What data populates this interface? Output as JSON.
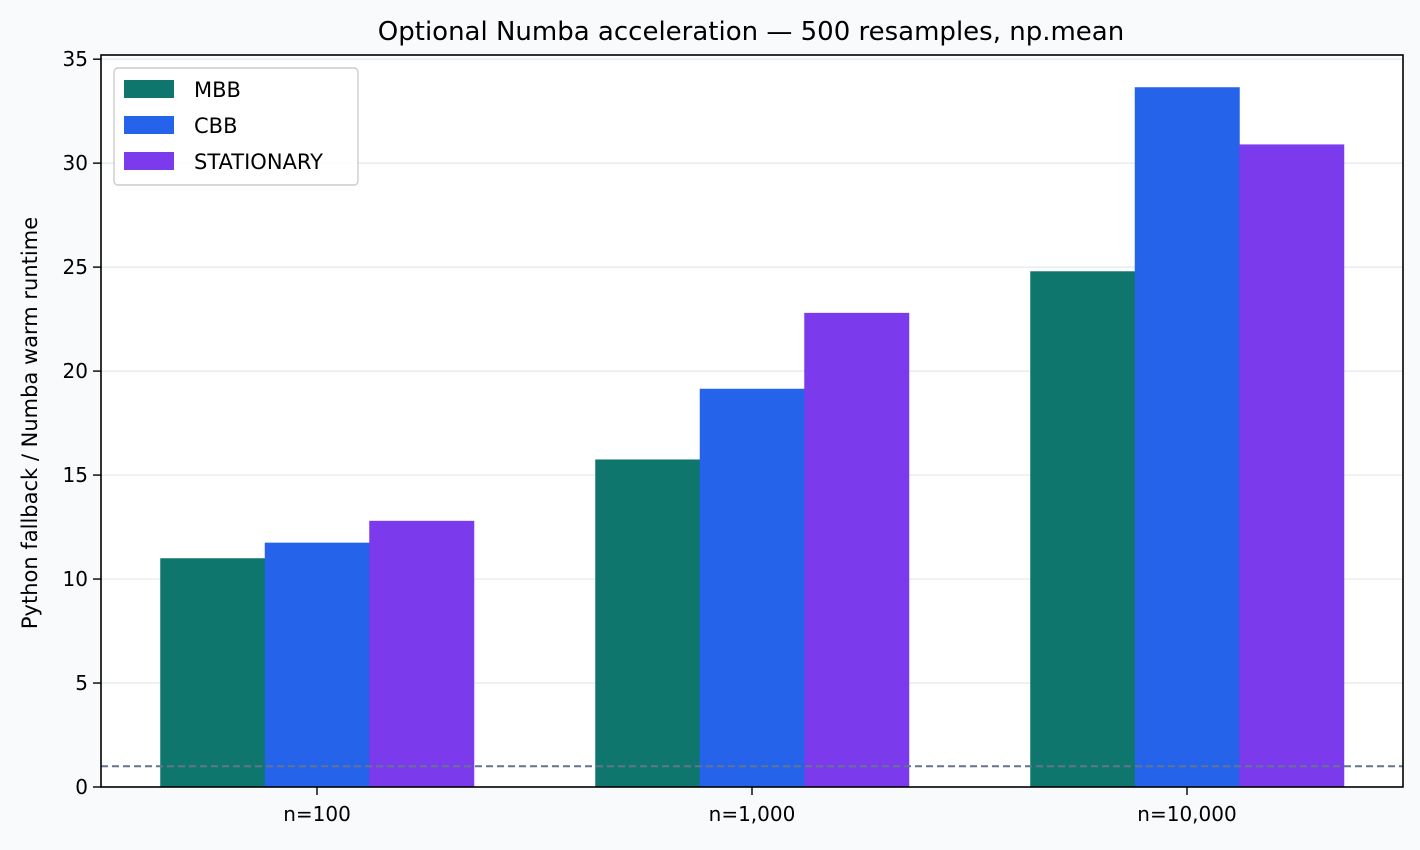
{
  "chart_data": {
    "type": "bar",
    "title": "Optional Numba acceleration — 500 resamples, np.mean",
    "xlabel": "",
    "ylabel": "Python fallback / Numba warm runtime",
    "categories": [
      "n=100",
      "n=1,000",
      "n=10,000"
    ],
    "series": [
      {
        "name": "MBB",
        "color": "#0f766e",
        "values": [
          11.0,
          15.75,
          24.8
        ]
      },
      {
        "name": "CBB",
        "color": "#2563eb",
        "values": [
          11.75,
          19.15,
          33.65
        ]
      },
      {
        "name": "STATIONARY",
        "color": "#7c3aed",
        "values": [
          12.8,
          22.8,
          30.9
        ]
      }
    ],
    "ylim": [
      0,
      35.2
    ],
    "yticks": [
      0,
      5,
      10,
      15,
      20,
      25,
      30,
      35
    ],
    "reference_line": {
      "y": 1,
      "style": "dashed",
      "color": "#64748b"
    },
    "grid": "y",
    "legend_position": "upper-left"
  }
}
